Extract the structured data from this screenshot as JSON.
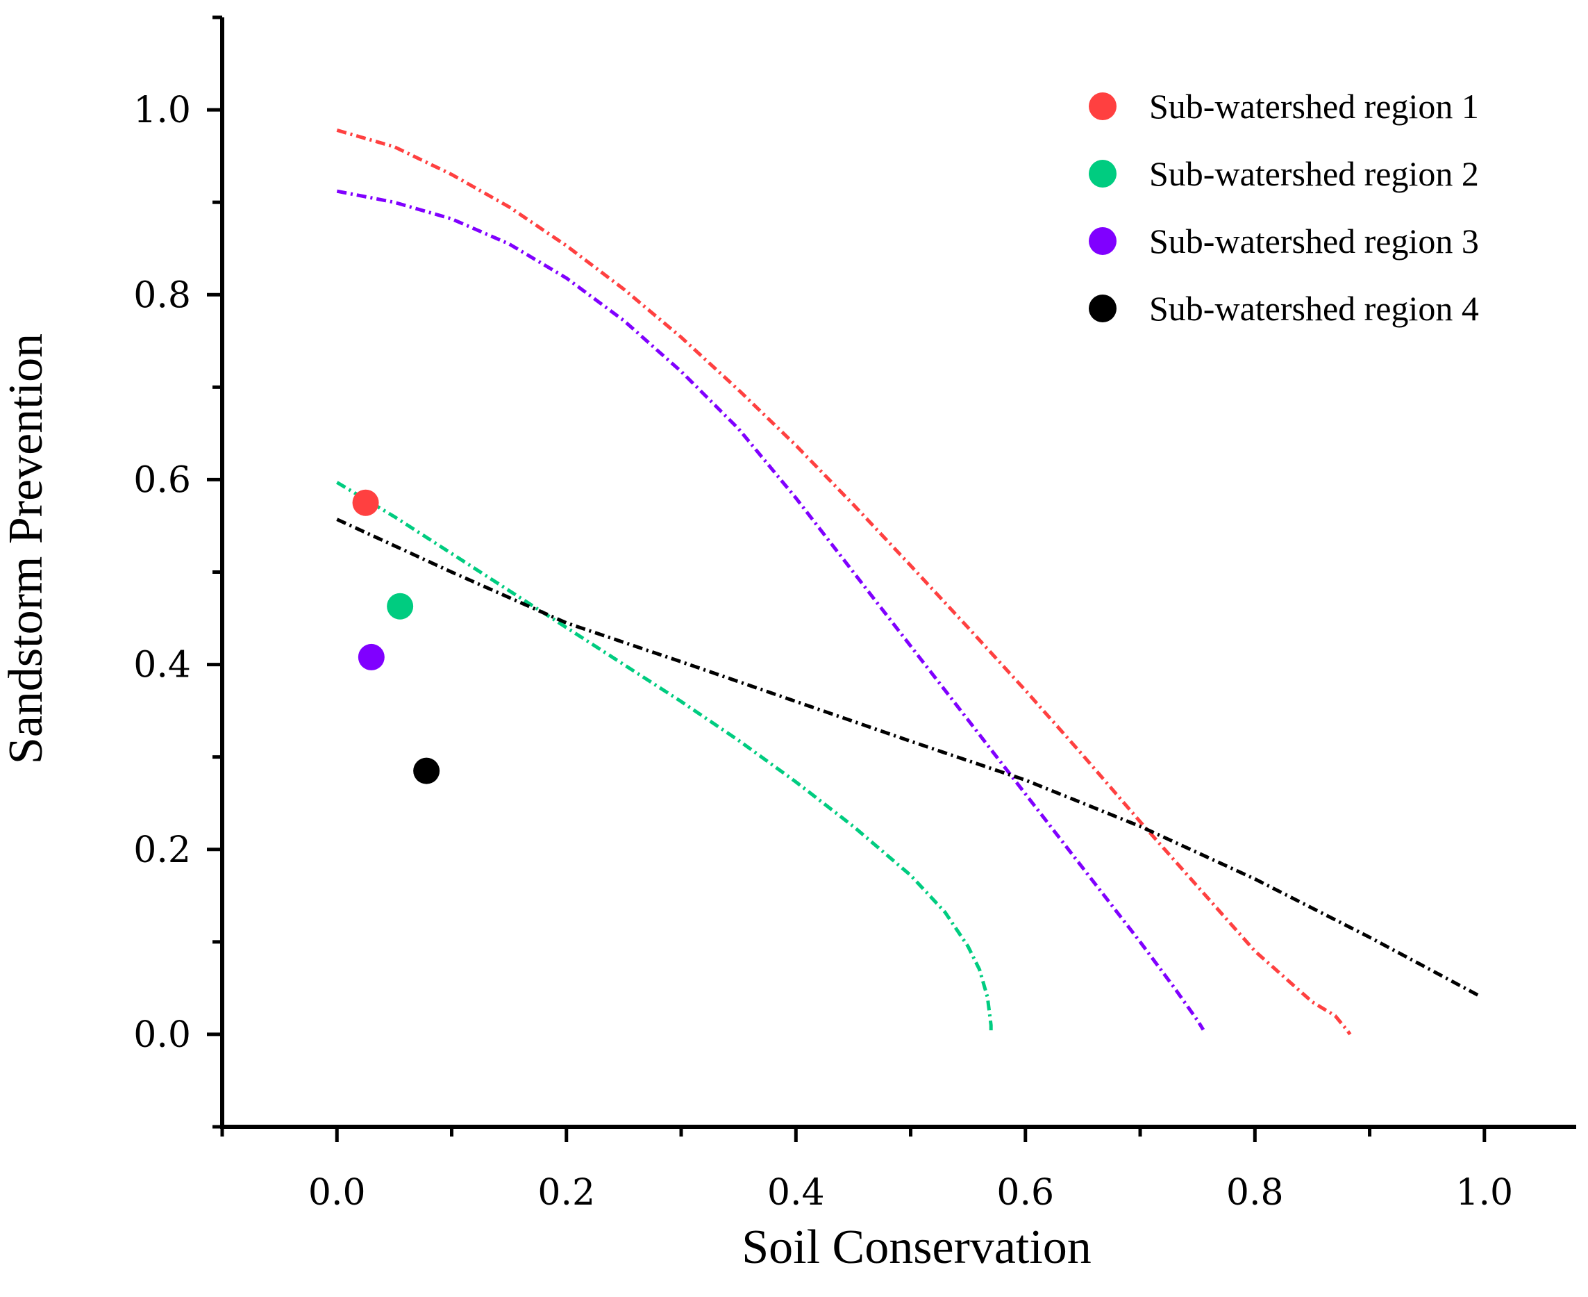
{
  "chart_data": {
    "type": "scatter",
    "title": "",
    "xlabel": "Soil Conservation",
    "ylabel": "Sandstorm Prevention",
    "xlim": [
      -0.1,
      1.08
    ],
    "ylim": [
      -0.1,
      1.1
    ],
    "xticks": [
      "0.0",
      "0.2",
      "0.4",
      "0.6",
      "0.8",
      "1.0"
    ],
    "xtick_values": [
      0.0,
      0.2,
      0.4,
      0.6,
      0.8,
      1.0
    ],
    "yticks": [
      "0.0",
      "0.2",
      "0.4",
      "0.6",
      "0.8",
      "1.0"
    ],
    "ytick_values": [
      0.0,
      0.2,
      0.4,
      0.6,
      0.8,
      1.0
    ],
    "legend_position": "top-right",
    "series": [
      {
        "name": "Sub-watershed region 1",
        "color": "#ff4040",
        "point": [
          0.025,
          0.575
        ],
        "curve": [
          [
            0.0,
            0.978
          ],
          [
            0.05,
            0.96
          ],
          [
            0.1,
            0.93
          ],
          [
            0.15,
            0.895
          ],
          [
            0.2,
            0.853
          ],
          [
            0.25,
            0.806
          ],
          [
            0.3,
            0.754
          ],
          [
            0.35,
            0.697
          ],
          [
            0.4,
            0.637
          ],
          [
            0.45,
            0.573
          ],
          [
            0.5,
            0.507
          ],
          [
            0.55,
            0.44
          ],
          [
            0.6,
            0.372
          ],
          [
            0.65,
            0.302
          ],
          [
            0.7,
            0.23
          ],
          [
            0.75,
            0.16
          ],
          [
            0.8,
            0.09
          ],
          [
            0.85,
            0.035
          ],
          [
            0.87,
            0.02
          ],
          [
            0.88,
            0.005
          ],
          [
            0.883,
            0.0
          ]
        ]
      },
      {
        "name": "Sub-watershed region 2",
        "color": "#00cc80",
        "point": [
          0.055,
          0.463
        ],
        "curve": [
          [
            0.0,
            0.597
          ],
          [
            0.05,
            0.56
          ],
          [
            0.1,
            0.52
          ],
          [
            0.15,
            0.48
          ],
          [
            0.2,
            0.44
          ],
          [
            0.25,
            0.4
          ],
          [
            0.3,
            0.36
          ],
          [
            0.35,
            0.318
          ],
          [
            0.4,
            0.273
          ],
          [
            0.45,
            0.225
          ],
          [
            0.5,
            0.172
          ],
          [
            0.53,
            0.132
          ],
          [
            0.55,
            0.095
          ],
          [
            0.56,
            0.07
          ],
          [
            0.567,
            0.04
          ],
          [
            0.57,
            0.01
          ],
          [
            0.57,
            0.0
          ]
        ]
      },
      {
        "name": "Sub-watershed region 3",
        "color": "#8000ff",
        "point": [
          0.03,
          0.408
        ],
        "curve": [
          [
            0.0,
            0.912
          ],
          [
            0.05,
            0.9
          ],
          [
            0.1,
            0.882
          ],
          [
            0.15,
            0.855
          ],
          [
            0.2,
            0.818
          ],
          [
            0.25,
            0.772
          ],
          [
            0.3,
            0.717
          ],
          [
            0.35,
            0.655
          ],
          [
            0.4,
            0.58
          ],
          [
            0.45,
            0.5
          ],
          [
            0.5,
            0.42
          ],
          [
            0.55,
            0.34
          ],
          [
            0.6,
            0.26
          ],
          [
            0.65,
            0.18
          ],
          [
            0.7,
            0.1
          ],
          [
            0.73,
            0.05
          ],
          [
            0.75,
            0.015
          ],
          [
            0.755,
            0.005
          ]
        ]
      },
      {
        "name": "Sub-watershed region 4",
        "color": "#000000",
        "point": [
          0.078,
          0.285
        ],
        "curve": [
          [
            0.0,
            0.557
          ],
          [
            0.1,
            0.5
          ],
          [
            0.2,
            0.445
          ],
          [
            0.3,
            0.403
          ],
          [
            0.4,
            0.36
          ],
          [
            0.5,
            0.317
          ],
          [
            0.6,
            0.275
          ],
          [
            0.7,
            0.225
          ],
          [
            0.8,
            0.168
          ],
          [
            0.9,
            0.105
          ],
          [
            0.995,
            0.042
          ]
        ]
      }
    ]
  }
}
